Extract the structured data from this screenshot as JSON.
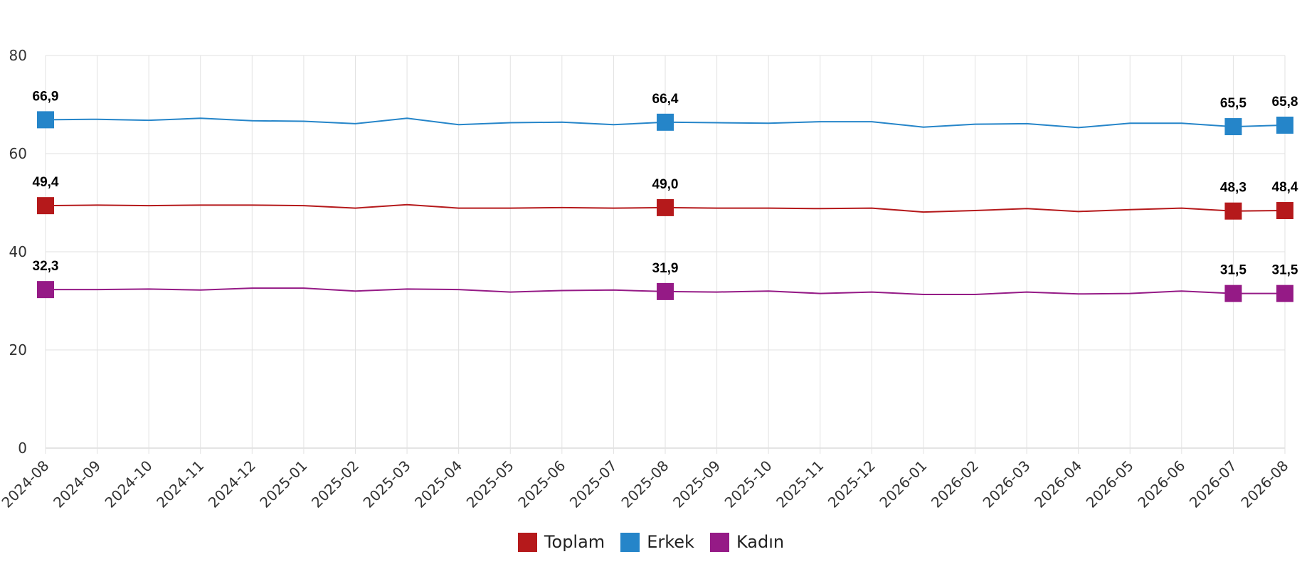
{
  "chart_data": {
    "type": "line",
    "x": [
      "2024-08",
      "2024-09",
      "2024-10",
      "2024-11",
      "2024-12",
      "2025-01",
      "2025-02",
      "2025-03",
      "2025-04",
      "2025-05",
      "2025-06",
      "2025-07",
      "2025-08",
      "2025-09",
      "2025-10",
      "2025-11",
      "2025-12",
      "2026-01",
      "2026-02",
      "2026-03",
      "2026-04",
      "2026-05",
      "2026-06",
      "2026-07",
      "2026-08"
    ],
    "ylim": [
      0,
      80
    ],
    "yticks": [
      "0",
      "20",
      "40",
      "60",
      "80"
    ],
    "grid": true,
    "legend_position": "bottom",
    "series": [
      {
        "name": "Toplam",
        "color": "#b5191b",
        "values": [
          49.4,
          49.5,
          49.4,
          49.5,
          49.5,
          49.4,
          48.9,
          49.6,
          48.9,
          48.9,
          49.0,
          48.9,
          49.0,
          48.9,
          48.9,
          48.8,
          48.9,
          48.1,
          48.4,
          48.8,
          48.2,
          48.6,
          48.9,
          48.3,
          48.4
        ],
        "labels": [
          {
            "index": 0,
            "text": "49,4"
          },
          {
            "index": 12,
            "text": "49,0"
          },
          {
            "index": 23,
            "text": "48,3"
          },
          {
            "index": 24,
            "text": "48,4"
          }
        ]
      },
      {
        "name": "Erkek",
        "color": "#2585c9",
        "values": [
          66.9,
          67.0,
          66.8,
          67.2,
          66.7,
          66.6,
          66.1,
          67.2,
          65.9,
          66.3,
          66.4,
          65.9,
          66.4,
          66.3,
          66.2,
          66.5,
          66.5,
          65.4,
          66.0,
          66.1,
          65.3,
          66.2,
          66.2,
          65.5,
          65.8
        ],
        "labels": [
          {
            "index": 0,
            "text": "66,9"
          },
          {
            "index": 12,
            "text": "66,4"
          },
          {
            "index": 23,
            "text": "65,5"
          },
          {
            "index": 24,
            "text": "65,8"
          }
        ]
      },
      {
        "name": "Kadın",
        "color": "#951a86",
        "values": [
          32.3,
          32.3,
          32.4,
          32.2,
          32.6,
          32.6,
          32.0,
          32.4,
          32.3,
          31.8,
          32.1,
          32.2,
          31.9,
          31.8,
          32.0,
          31.5,
          31.8,
          31.3,
          31.3,
          31.8,
          31.4,
          31.5,
          32.0,
          31.5,
          31.5
        ],
        "labels": [
          {
            "index": 0,
            "text": "32,3"
          },
          {
            "index": 12,
            "text": "31,9"
          },
          {
            "index": 23,
            "text": "31,5"
          },
          {
            "index": 24,
            "text": "31,5"
          }
        ]
      }
    ]
  }
}
